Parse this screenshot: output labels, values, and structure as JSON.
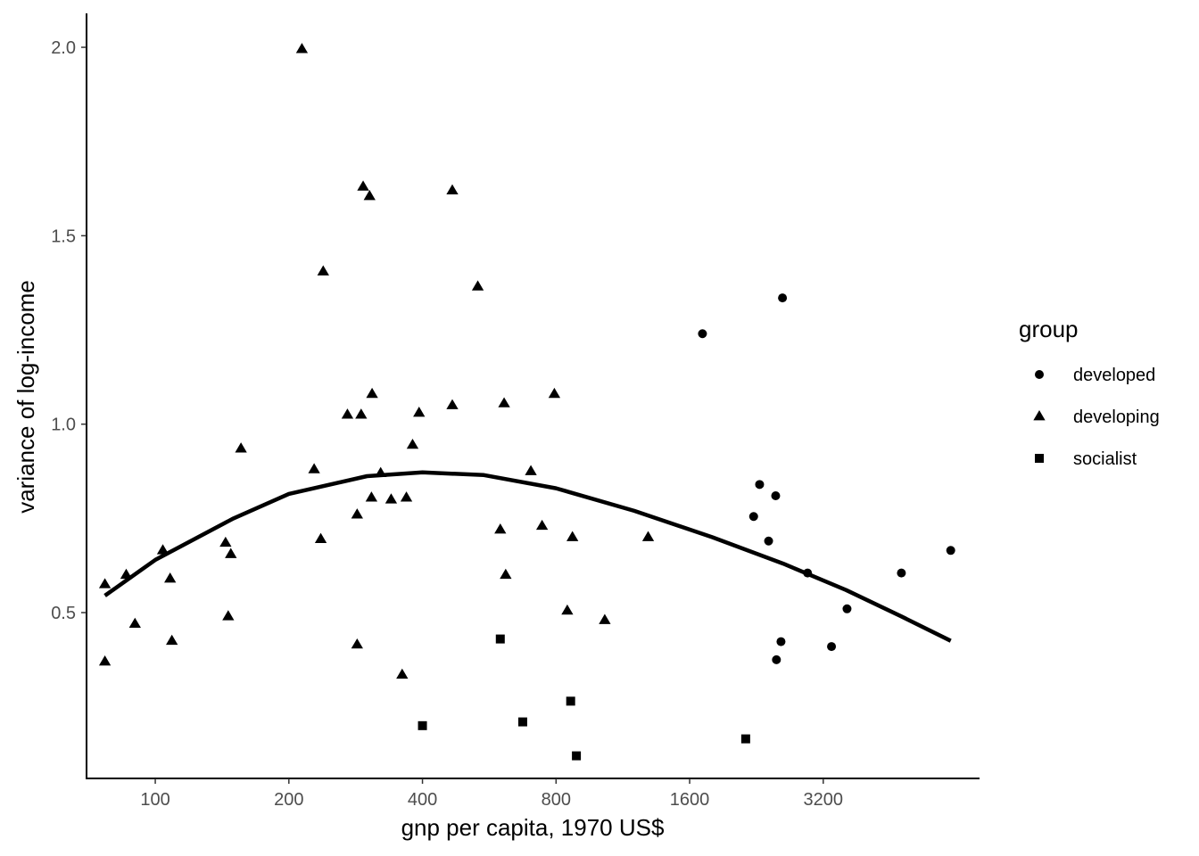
{
  "chart_data": {
    "type": "scatter",
    "xlabel": "gnp per capita, 1970 US$",
    "ylabel": "variance of log-income",
    "x_scale": "log2",
    "xlim": [
      70,
      7200
    ],
    "ylim": [
      0.06,
      2.09
    ],
    "x_ticks": [
      100,
      200,
      400,
      800,
      1600,
      3200
    ],
    "x_tick_labels": [
      "100",
      "200",
      "400",
      "800",
      "1600",
      "3200"
    ],
    "y_ticks": [
      0.5,
      1.0,
      1.5,
      2.0
    ],
    "y_tick_labels": [
      "0.5",
      "1.0",
      "1.5",
      "2.0"
    ],
    "grid": false,
    "legend": {
      "title": "group",
      "position": "right",
      "entries": [
        {
          "label": "developed",
          "shape": "circle"
        },
        {
          "label": "developing",
          "shape": "triangle"
        },
        {
          "label": "socialist",
          "shape": "square"
        }
      ]
    },
    "series": [
      {
        "group": "developed",
        "shape": "circle",
        "x": [
          2590,
          1710,
          2230,
          2300,
          2500,
          2410,
          2950,
          2570,
          2510,
          3620,
          3340,
          4800,
          6200
        ],
        "y": [
          1.335,
          1.24,
          0.755,
          0.84,
          0.81,
          0.69,
          0.605,
          0.423,
          0.375,
          0.51,
          0.41,
          0.605,
          0.665
        ]
      },
      {
        "group": "developing",
        "shape": "triangle",
        "x": [
          214,
          294,
          304,
          467,
          239,
          533,
          308,
          291,
          393,
          271,
          467,
          380,
          611,
          793,
          156,
          228,
          322,
          340,
          368,
          285,
          307,
          144,
          148,
          236,
          702,
          744,
          599,
          616,
          871,
          1290,
          86,
          104,
          108,
          77,
          90,
          146,
          285,
          77,
          109,
          360,
          848,
          1030
        ],
        "y": [
          1.995,
          1.63,
          1.605,
          1.62,
          1.405,
          1.365,
          1.08,
          1.025,
          1.03,
          1.025,
          1.05,
          0.945,
          1.055,
          1.08,
          0.935,
          0.88,
          0.87,
          0.8,
          0.805,
          0.76,
          0.805,
          0.685,
          0.655,
          0.695,
          0.875,
          0.73,
          0.72,
          0.6,
          0.7,
          0.7,
          0.6,
          0.665,
          0.59,
          0.575,
          0.47,
          0.49,
          0.415,
          0.37,
          0.425,
          0.335,
          0.505,
          0.48
        ]
      },
      {
        "group": "socialist",
        "shape": "square",
        "x": [
          400,
          599,
          673,
          863,
          889,
          2140
        ],
        "y": [
          0.2,
          0.43,
          0.21,
          0.265,
          0.12,
          0.165
        ]
      }
    ],
    "fit": {
      "type": "quadratic smooth",
      "x": [
        77,
        100,
        150,
        200,
        300,
        400,
        550,
        800,
        1200,
        1800,
        2600,
        3600,
        4800,
        6200
      ],
      "y": [
        0.545,
        0.64,
        0.75,
        0.815,
        0.862,
        0.872,
        0.865,
        0.83,
        0.77,
        0.7,
        0.63,
        0.56,
        0.49,
        0.425
      ]
    }
  }
}
